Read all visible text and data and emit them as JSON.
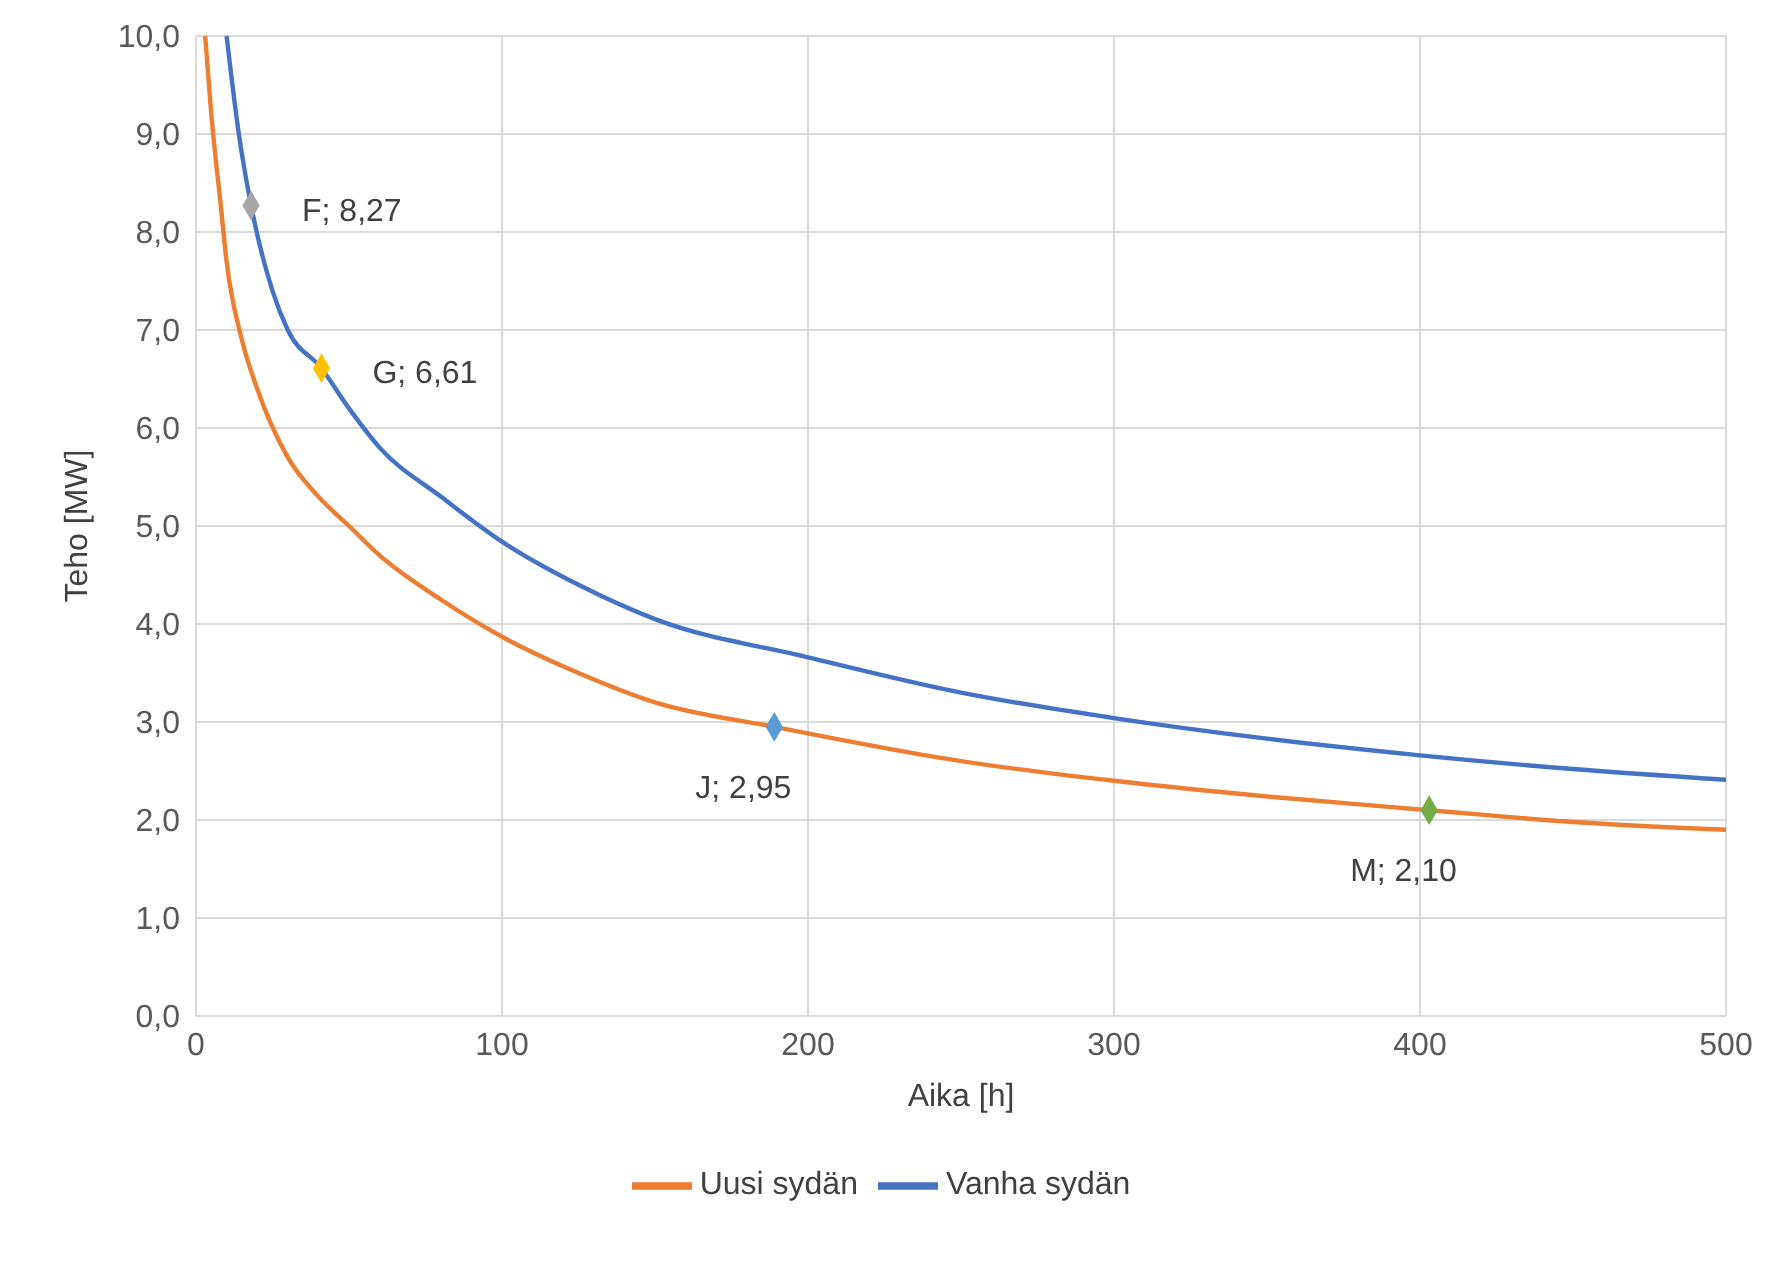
{
  "chart_data": {
    "type": "line",
    "xlabel": "Aika [h]",
    "ylabel": "Teho [MW]",
    "xlim": [
      0,
      500
    ],
    "xticks": [
      0,
      100,
      200,
      300,
      400,
      500
    ],
    "ylim": [
      0,
      10
    ],
    "yticks": [
      {
        "value": 0,
        "label": "0,0"
      },
      {
        "value": 1,
        "label": "1,0"
      },
      {
        "value": 2,
        "label": "2,0"
      },
      {
        "value": 3,
        "label": "3,0"
      },
      {
        "value": 4,
        "label": "4,0"
      },
      {
        "value": 5,
        "label": "5,0"
      },
      {
        "value": 6,
        "label": "6,0"
      },
      {
        "value": 7,
        "label": "7,0"
      },
      {
        "value": 8,
        "label": "8,0"
      },
      {
        "value": 9,
        "label": "9,0"
      },
      {
        "value": 10,
        "label": "10,0"
      }
    ],
    "grid": true,
    "legend": "bottom",
    "marker": "none",
    "line_style": "solid",
    "series": [
      {
        "name": "Vanha sydän",
        "color": "#4472c4",
        "x": [
          10,
          14,
          18,
          25,
          30,
          41,
          50,
          60,
          80,
          100,
          125,
          150,
          200,
          250,
          300,
          350,
          400,
          450,
          500
        ],
        "values": [
          10.0,
          9.0,
          8.27,
          7.4,
          7.0,
          6.61,
          6.2,
          5.8,
          5.3,
          4.84,
          4.4,
          4.05,
          3.66,
          3.3,
          3.04,
          2.83,
          2.66,
          2.52,
          2.41
        ]
      },
      {
        "name": "Uusi sydän",
        "color": "#ed7d31",
        "x": [
          3,
          5,
          8,
          10,
          15,
          20,
          30,
          40,
          50,
          60,
          80,
          100,
          125,
          150,
          189,
          250,
          300,
          350,
          403,
          450,
          500
        ],
        "values": [
          10.0,
          9.2,
          8.3,
          7.7,
          6.9,
          6.4,
          5.7,
          5.3,
          5.0,
          4.7,
          4.25,
          3.87,
          3.5,
          3.2,
          2.95,
          2.6,
          2.4,
          2.24,
          2.1,
          1.98,
          1.9
        ]
      },
      {
        "type": "scatter",
        "marker": "diamond",
        "x": [
          18,
          41,
          189,
          403
        ],
        "values": [
          8.27,
          6.61,
          2.95,
          2.1
        ],
        "colors": [
          "#a5a5a5",
          "#ffc000",
          "#5b9bd5",
          "#70ad47"
        ],
        "value_labels": [
          "F; 8,27",
          "G; 6,61",
          "J; 2,95",
          "M; 2,10"
        ]
      }
    ]
  }
}
